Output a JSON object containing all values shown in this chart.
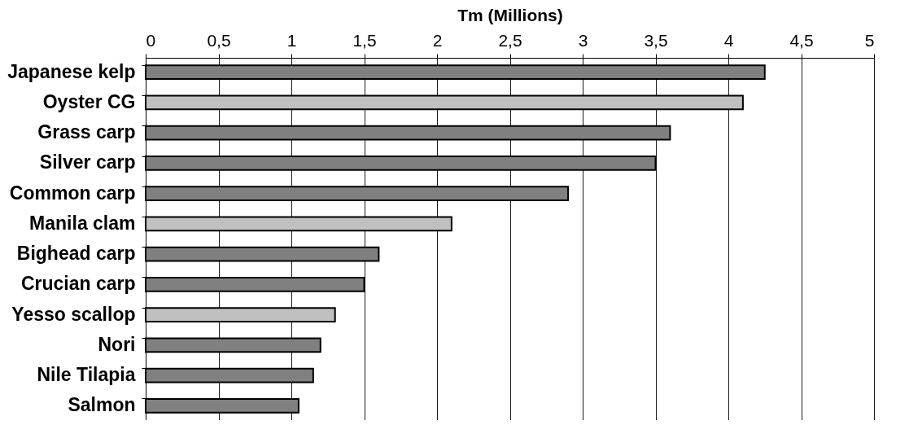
{
  "chart_data": {
    "type": "bar",
    "orientation": "horizontal",
    "xlabel": "Tm (Millions)",
    "categories": [
      "Japanese kelp",
      "Oyster CG",
      "Grass carp",
      "Silver carp",
      "Common carp",
      "Manila clam",
      "Bighead carp",
      "Crucian carp",
      "Yesso scallop",
      "Nori",
      "Nile Tilapia",
      "Salmon"
    ],
    "values": [
      4.25,
      4.1,
      3.6,
      3.5,
      2.9,
      2.1,
      1.6,
      1.5,
      1.3,
      1.2,
      1.15,
      1.05
    ],
    "colors": [
      "#808080",
      "#c0c0c0",
      "#808080",
      "#808080",
      "#808080",
      "#c0c0c0",
      "#808080",
      "#808080",
      "#c0c0c0",
      "#808080",
      "#808080",
      "#808080"
    ],
    "xlim": [
      0,
      5
    ],
    "xticks": [
      0,
      {
        "value": 0.5,
        "label": "0,5"
      },
      1,
      {
        "value": 1.5,
        "label": "1,5"
      },
      2,
      {
        "value": 2.5,
        "label": "2,5"
      },
      3,
      {
        "value": 3.5,
        "label": "3,5"
      },
      4,
      {
        "value": 4.5,
        "label": "4,5"
      },
      5
    ],
    "grid": "x"
  }
}
